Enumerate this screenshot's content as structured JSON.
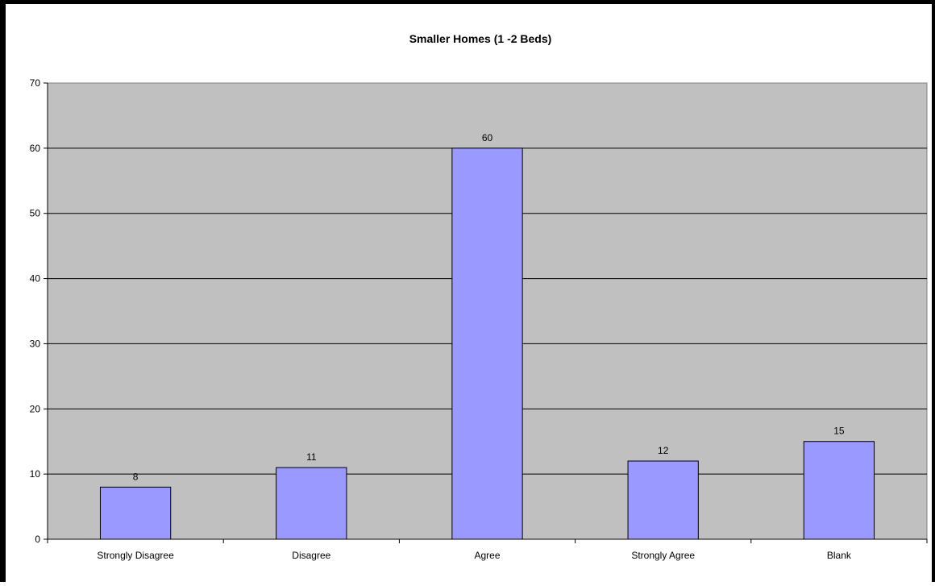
{
  "chart_data": {
    "type": "bar",
    "title": "Smaller Homes (1 -2 Beds)",
    "xlabel": "",
    "ylabel": "",
    "categories": [
      "Strongly Disagree",
      "Disagree",
      "Agree",
      "Strongly Agree",
      "Blank"
    ],
    "values": [
      8,
      11,
      60,
      12,
      15
    ],
    "data_labels": [
      "8",
      "11",
      "60",
      "12",
      "15"
    ],
    "ylim": [
      0,
      70
    ],
    "yticks": [
      0,
      10,
      20,
      30,
      40,
      50,
      60,
      70
    ],
    "grid": true,
    "legend": "none",
    "colors": {
      "bar_fill": "#9999ff",
      "bar_stroke": "#000000",
      "plot_background": "#c0c0c0",
      "gridline": "#000000",
      "frame": "#000000"
    }
  }
}
